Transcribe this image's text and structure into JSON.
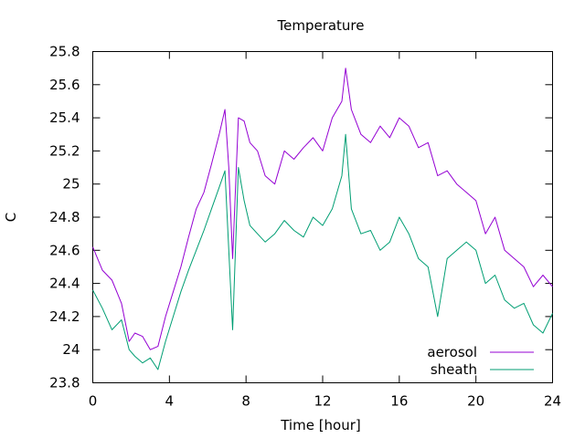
{
  "chart_data": {
    "type": "line",
    "title": "Temperature",
    "xlabel": "Time [hour]",
    "ylabel": "C",
    "xlim": [
      0,
      24
    ],
    "ylim": [
      23.8,
      25.8
    ],
    "xticks": [
      0,
      4,
      8,
      12,
      16,
      20,
      24
    ],
    "yticks": [
      23.8,
      24,
      24.2,
      24.4,
      24.6,
      24.8,
      25,
      25.2,
      25.4,
      25.6,
      25.8
    ],
    "xtick_labels": [
      "0",
      "4",
      "8",
      "12",
      "16",
      "20",
      "24"
    ],
    "ytick_labels": [
      "23.8",
      "24",
      "24.2",
      "24.4",
      "24.6",
      "24.8",
      "25",
      "25.2",
      "25.4",
      "25.6",
      "25.8"
    ],
    "grid": false,
    "legend_position": "bottom-right",
    "series": [
      {
        "name": "aerosol",
        "color": "#9400d3",
        "x": [
          0,
          0.5,
          1,
          1.5,
          1.9,
          2.2,
          2.6,
          3,
          3.4,
          3.8,
          4.2,
          4.6,
          5,
          5.4,
          5.8,
          6.2,
          6.6,
          6.9,
          7.1,
          7.3,
          7.6,
          7.9,
          8.2,
          8.6,
          9,
          9.5,
          10,
          10.5,
          11,
          11.5,
          12,
          12.5,
          13,
          13.2,
          13.5,
          14,
          14.5,
          15,
          15.5,
          16,
          16.5,
          17,
          17.5,
          18,
          18.5,
          19,
          19.5,
          20,
          20.5,
          21,
          21.5,
          22,
          22.5,
          23,
          23.5,
          24
        ],
        "y": [
          24.62,
          24.48,
          24.42,
          24.28,
          24.05,
          24.1,
          24.08,
          24.0,
          24.02,
          24.2,
          24.35,
          24.5,
          24.68,
          24.85,
          24.95,
          25.12,
          25.3,
          25.45,
          25.1,
          24.55,
          25.4,
          25.38,
          25.25,
          25.2,
          25.05,
          25.0,
          25.2,
          25.15,
          25.22,
          25.28,
          25.2,
          25.4,
          25.5,
          25.7,
          25.45,
          25.3,
          25.25,
          25.35,
          25.28,
          25.4,
          25.35,
          25.22,
          25.25,
          25.05,
          25.08,
          25.0,
          24.95,
          24.9,
          24.7,
          24.8,
          24.6,
          24.55,
          24.5,
          24.38,
          24.45,
          24.38
        ]
      },
      {
        "name": "sheath",
        "color": "#009e73",
        "x": [
          0,
          0.5,
          1,
          1.5,
          1.9,
          2.2,
          2.6,
          3,
          3.4,
          3.8,
          4.2,
          4.6,
          5,
          5.4,
          5.8,
          6.2,
          6.6,
          6.9,
          7.1,
          7.3,
          7.6,
          7.9,
          8.2,
          8.6,
          9,
          9.5,
          10,
          10.5,
          11,
          11.5,
          12,
          12.5,
          13,
          13.2,
          13.5,
          14,
          14.5,
          15,
          15.5,
          16,
          16.5,
          17,
          17.5,
          18,
          18.5,
          19,
          19.5,
          20,
          20.5,
          21,
          21.5,
          22,
          22.5,
          23,
          23.5,
          24
        ],
        "y": [
          24.36,
          24.25,
          24.12,
          24.18,
          24.0,
          23.96,
          23.92,
          23.95,
          23.88,
          24.05,
          24.2,
          24.35,
          24.48,
          24.6,
          24.72,
          24.85,
          24.98,
          25.08,
          24.6,
          24.12,
          25.1,
          24.9,
          24.75,
          24.7,
          24.65,
          24.7,
          24.78,
          24.72,
          24.68,
          24.8,
          24.75,
          24.85,
          25.05,
          25.3,
          24.85,
          24.7,
          24.72,
          24.6,
          24.65,
          24.8,
          24.7,
          24.55,
          24.5,
          24.2,
          24.55,
          24.6,
          24.65,
          24.6,
          24.4,
          24.45,
          24.3,
          24.25,
          24.28,
          24.15,
          24.1,
          24.22
        ]
      }
    ]
  }
}
